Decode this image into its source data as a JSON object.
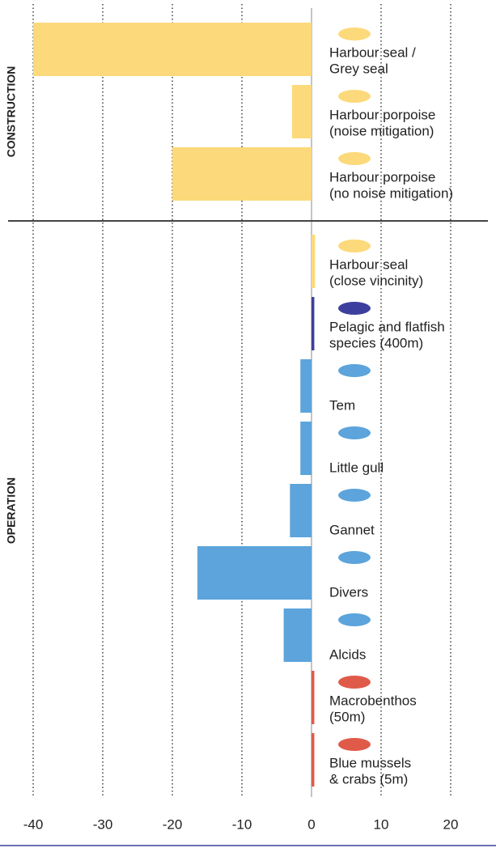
{
  "chart_data": {
    "type": "bar",
    "orientation": "horizontal",
    "groups": [
      {
        "name": "CONSTRUCTION",
        "categories": [
          [
            "Harbour seal /",
            "Grey seal"
          ],
          [
            "Harbour porpoise",
            "(noise mitigation)"
          ],
          [
            "Harbour porpoise",
            "(no noise mitigation)"
          ]
        ],
        "values": [
          -40,
          -2.8,
          -20
        ],
        "colors": [
          "#fcd97a",
          "#fcd97a",
          "#fcd97a"
        ]
      },
      {
        "name": "OPERATION",
        "categories": [
          [
            "Harbour seal",
            "(close vincinity)"
          ],
          [
            "Pelagic and flatfish",
            "species (400m)"
          ],
          [
            "Tem"
          ],
          [
            "Little gull"
          ],
          [
            "Gannet"
          ],
          [
            "Divers"
          ],
          [
            "Alcids"
          ],
          [
            "Macrobenthos",
            "(50m)"
          ],
          [
            "Blue mussels",
            "& crabs (5m)"
          ]
        ],
        "values": [
          0.5,
          0.4,
          -1.6,
          -1.6,
          -3.1,
          -16.4,
          -4,
          0.4,
          0.4
        ],
        "colors": [
          "#fcd97a",
          "#3d3f9e",
          "#5ca4db",
          "#5ca4db",
          "#5ca4db",
          "#5ca4db",
          "#5ca4db",
          "#e05a4a",
          "#e05a4a"
        ]
      }
    ],
    "xlim": [
      -40,
      20
    ],
    "xticks": [
      -40,
      -30,
      -20,
      -10,
      0,
      10,
      20
    ],
    "grid": true
  }
}
